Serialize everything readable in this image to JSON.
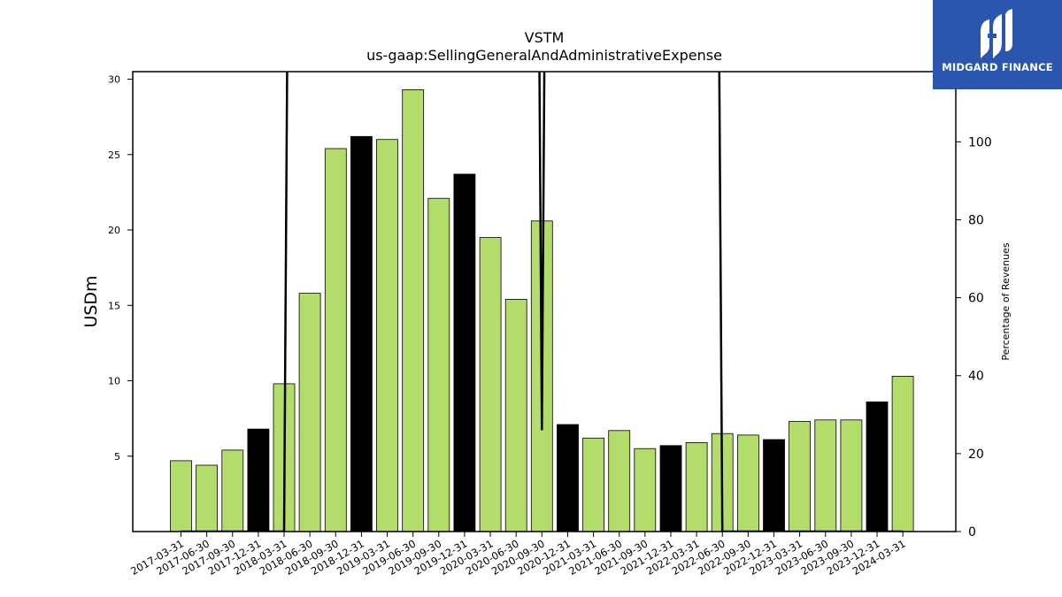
{
  "chart_data": {
    "type": "bar",
    "title": "VSTM",
    "subtitle": "us-gaap:SellingGeneralAndAdministrativeExpense",
    "ylabel": "USDm",
    "y2label": "Percentage of Revenues",
    "ylim": [
      0,
      30.5
    ],
    "y2lim": [
      0,
      118
    ],
    "yticks": [
      5,
      10,
      15,
      20,
      25,
      30
    ],
    "y2ticks": [
      0,
      20,
      40,
      60,
      80,
      100
    ],
    "categories": [
      "2017-03-31",
      "2017-06-30",
      "2017-09-30",
      "2017-12-31",
      "2018-03-31",
      "2018-06-30",
      "2018-09-30",
      "2018-12-31",
      "2019-03-31",
      "2019-06-30",
      "2019-09-30",
      "2019-12-31",
      "2020-03-31",
      "2020-06-30",
      "2020-09-30",
      "2020-12-31",
      "2021-03-31",
      "2021-06-30",
      "2021-09-30",
      "2021-12-31",
      "2022-03-31",
      "2022-06-30",
      "2022-09-30",
      "2022-12-31",
      "2023-03-31",
      "2023-06-30",
      "2023-09-30",
      "2023-12-31",
      "2024-03-31"
    ],
    "values": [
      4.7,
      4.4,
      5.4,
      6.8,
      9.8,
      15.8,
      25.4,
      26.2,
      26.0,
      29.3,
      22.1,
      23.7,
      19.5,
      15.4,
      20.6,
      7.1,
      6.2,
      6.7,
      5.5,
      5.7,
      5.9,
      6.5,
      6.4,
      6.1,
      7.3,
      7.4,
      7.4,
      8.6,
      10.3
    ],
    "highlight": [
      false,
      false,
      false,
      true,
      false,
      false,
      false,
      true,
      false,
      false,
      false,
      true,
      false,
      false,
      false,
      true,
      false,
      false,
      false,
      true,
      false,
      false,
      false,
      true,
      false,
      false,
      false,
      true,
      false
    ],
    "bar_color": "#b2dd6a",
    "highlight_color": "#000000",
    "line_series": {
      "values": [
        0,
        0,
        0,
        0,
        0,
        1000,
        1000,
        1000,
        1000,
        1000,
        1000,
        1000,
        1000,
        1000,
        26,
        1000,
        1000,
        1000,
        1000,
        1000,
        1000,
        0,
        0,
        0,
        0,
        0,
        0,
        0,
        0
      ],
      "color": "#000000"
    }
  },
  "logo": {
    "text": "MIDGARD FINANCE",
    "background": "#2a57ad"
  }
}
